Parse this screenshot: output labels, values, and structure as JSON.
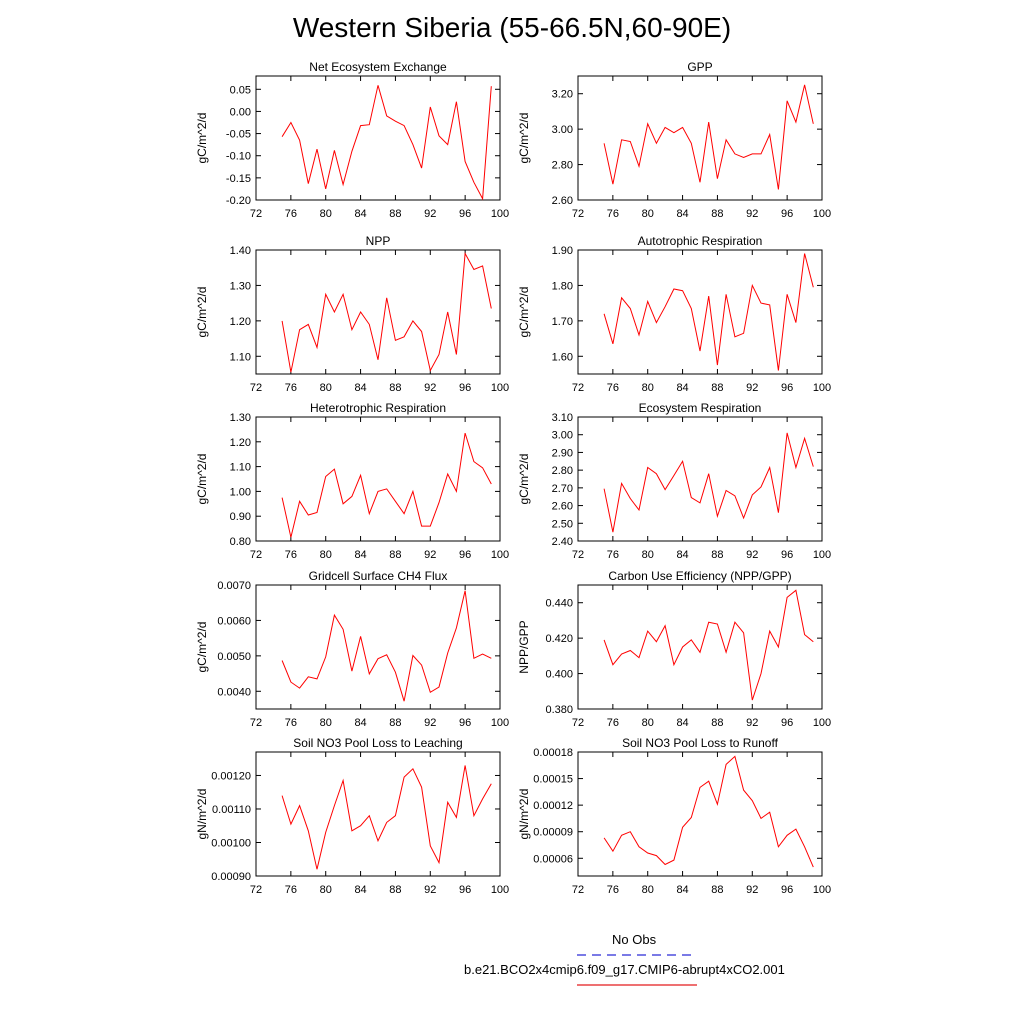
{
  "figure_title": "Western Siberia (55-66.5N,60-90E)",
  "legend": {
    "entries": [
      {
        "label": "No Obs",
        "color": "#2b2bd6",
        "dash": true
      },
      {
        "label": "b.e21.BCO2x4cmip6.f09_g17.CMIP6-abrupt4xCO2.001",
        "color": "#e31a1c",
        "dash": false
      }
    ]
  },
  "series_color": "#ff0000",
  "chart_data": [
    {
      "type": "line",
      "title": "Net Ecosystem Exchange",
      "ylabel": "gC/m^2/d",
      "xlim": [
        72,
        100
      ],
      "ylim": [
        -0.2,
        0.08
      ],
      "xticks": [
        72,
        76,
        80,
        84,
        88,
        92,
        96,
        100
      ],
      "yticks": [
        -0.2,
        -0.15,
        -0.1,
        -0.05,
        0.0,
        0.05
      ],
      "ytick_labels": [
        "-0.20",
        "-0.15",
        "-0.10",
        "-0.05",
        "0.00",
        "0.05"
      ],
      "x": [
        75,
        76,
        77,
        78,
        79,
        80,
        81,
        82,
        83,
        84,
        85,
        86,
        87,
        88,
        89,
        90,
        91,
        92,
        93,
        94,
        95,
        96,
        97,
        98,
        99
      ],
      "y": [
        -0.057,
        -0.025,
        -0.065,
        -0.163,
        -0.085,
        -0.175,
        -0.088,
        -0.165,
        -0.09,
        -0.032,
        -0.03,
        0.059,
        -0.01,
        -0.022,
        -0.032,
        -0.075,
        -0.128,
        0.01,
        -0.055,
        -0.075,
        0.022,
        -0.113,
        -0.16,
        -0.197,
        0.057
      ]
    },
    {
      "type": "line",
      "title": "GPP",
      "ylabel": "gC/m^2/d",
      "xlim": [
        72,
        100
      ],
      "ylim": [
        2.6,
        3.3
      ],
      "xticks": [
        72,
        76,
        80,
        84,
        88,
        92,
        96,
        100
      ],
      "yticks": [
        2.6,
        2.8,
        3.0,
        3.2
      ],
      "ytick_labels": [
        "2.60",
        "2.80",
        "3.00",
        "3.20"
      ],
      "x": [
        75,
        76,
        77,
        78,
        79,
        80,
        81,
        82,
        83,
        84,
        85,
        86,
        87,
        88,
        89,
        90,
        91,
        92,
        93,
        94,
        95,
        96,
        97,
        98,
        99
      ],
      "y": [
        2.92,
        2.69,
        2.94,
        2.93,
        2.79,
        3.03,
        2.92,
        3.01,
        2.98,
        3.01,
        2.92,
        2.7,
        3.04,
        2.72,
        2.94,
        2.86,
        2.84,
        2.86,
        2.86,
        2.97,
        2.66,
        3.16,
        3.04,
        3.25,
        3.03
      ]
    },
    {
      "type": "line",
      "title": "NPP",
      "ylabel": "gC/m^2/d",
      "xlim": [
        72,
        100
      ],
      "ylim": [
        1.05,
        1.4
      ],
      "xticks": [
        72,
        76,
        80,
        84,
        88,
        92,
        96,
        100
      ],
      "yticks": [
        1.1,
        1.2,
        1.3,
        1.4
      ],
      "ytick_labels": [
        "1.10",
        "1.20",
        "1.30",
        "1.40"
      ],
      "x": [
        75,
        76,
        77,
        78,
        79,
        80,
        81,
        82,
        83,
        84,
        85,
        86,
        87,
        88,
        89,
        90,
        91,
        92,
        93,
        94,
        95,
        96,
        97,
        98,
        99
      ],
      "y": [
        1.2,
        1.055,
        1.175,
        1.19,
        1.125,
        1.275,
        1.225,
        1.275,
        1.175,
        1.225,
        1.19,
        1.09,
        1.265,
        1.145,
        1.155,
        1.2,
        1.17,
        1.06,
        1.105,
        1.225,
        1.105,
        1.39,
        1.345,
        1.355,
        1.235
      ]
    },
    {
      "type": "line",
      "title": "Autotrophic Respiration",
      "ylabel": "gC/m^2/d",
      "xlim": [
        72,
        100
      ],
      "ylim": [
        1.55,
        1.9
      ],
      "xticks": [
        72,
        76,
        80,
        84,
        88,
        92,
        96,
        100
      ],
      "yticks": [
        1.6,
        1.7,
        1.8,
        1.9
      ],
      "ytick_labels": [
        "1.60",
        "1.70",
        "1.80",
        "1.90"
      ],
      "x": [
        75,
        76,
        77,
        78,
        79,
        80,
        81,
        82,
        83,
        84,
        85,
        86,
        87,
        88,
        89,
        90,
        91,
        92,
        93,
        94,
        95,
        96,
        97,
        98,
        99
      ],
      "y": [
        1.72,
        1.635,
        1.765,
        1.735,
        1.66,
        1.755,
        1.695,
        1.74,
        1.79,
        1.785,
        1.735,
        1.615,
        1.77,
        1.575,
        1.775,
        1.655,
        1.665,
        1.8,
        1.75,
        1.745,
        1.56,
        1.775,
        1.695,
        1.89,
        1.795
      ]
    },
    {
      "type": "line",
      "title": "Heterotrophic Respiration",
      "ylabel": "gC/m^2/d",
      "xlim": [
        72,
        100
      ],
      "ylim": [
        0.8,
        1.3
      ],
      "xticks": [
        72,
        76,
        80,
        84,
        88,
        92,
        96,
        100
      ],
      "yticks": [
        0.8,
        0.9,
        1.0,
        1.1,
        1.2,
        1.3
      ],
      "ytick_labels": [
        "0.80",
        "0.90",
        "1.00",
        "1.10",
        "1.20",
        "1.30"
      ],
      "x": [
        75,
        76,
        77,
        78,
        79,
        80,
        81,
        82,
        83,
        84,
        85,
        86,
        87,
        88,
        89,
        90,
        91,
        92,
        93,
        94,
        95,
        96,
        97,
        98,
        99
      ],
      "y": [
        0.975,
        0.815,
        0.96,
        0.905,
        0.915,
        1.06,
        1.09,
        0.95,
        0.98,
        1.065,
        0.91,
        1.0,
        1.01,
        0.96,
        0.91,
        1.0,
        0.86,
        0.86,
        0.955,
        1.07,
        1.0,
        1.235,
        1.12,
        1.095,
        1.03
      ]
    },
    {
      "type": "line",
      "title": "Ecosystem Respiration",
      "ylabel": "gC/m^2/d",
      "xlim": [
        72,
        100
      ],
      "ylim": [
        2.4,
        3.1
      ],
      "xticks": [
        72,
        76,
        80,
        84,
        88,
        92,
        96,
        100
      ],
      "yticks": [
        2.4,
        2.5,
        2.6,
        2.7,
        2.8,
        2.9,
        3.0,
        3.1
      ],
      "ytick_labels": [
        "2.40",
        "2.50",
        "2.60",
        "2.70",
        "2.80",
        "2.90",
        "3.00",
        "3.10"
      ],
      "x": [
        75,
        76,
        77,
        78,
        79,
        80,
        81,
        82,
        83,
        84,
        85,
        86,
        87,
        88,
        89,
        90,
        91,
        92,
        93,
        94,
        95,
        96,
        97,
        98,
        99
      ],
      "y": [
        2.695,
        2.45,
        2.725,
        2.64,
        2.575,
        2.815,
        2.78,
        2.69,
        2.77,
        2.85,
        2.645,
        2.615,
        2.78,
        2.54,
        2.685,
        2.655,
        2.53,
        2.66,
        2.705,
        2.815,
        2.56,
        3.01,
        2.815,
        2.98,
        2.82
      ]
    },
    {
      "type": "line",
      "title": "Gridcell Surface CH4 Flux",
      "ylabel": "gC/m^2/d",
      "xlim": [
        72,
        100
      ],
      "ylim": [
        0.0035,
        0.007
      ],
      "xticks": [
        72,
        76,
        80,
        84,
        88,
        92,
        96,
        100
      ],
      "yticks": [
        0.004,
        0.005,
        0.006,
        0.007
      ],
      "ytick_labels": [
        "0.0040",
        "0.0050",
        "0.0060",
        "0.0070"
      ],
      "x": [
        75,
        76,
        77,
        78,
        79,
        80,
        81,
        82,
        83,
        84,
        85,
        86,
        87,
        88,
        89,
        90,
        91,
        92,
        93,
        94,
        95,
        96,
        97,
        98,
        99
      ],
      "y": [
        0.00487,
        0.00426,
        0.00409,
        0.00441,
        0.00435,
        0.00497,
        0.00615,
        0.00575,
        0.00457,
        0.00555,
        0.00449,
        0.00492,
        0.00503,
        0.00454,
        0.00372,
        0.00501,
        0.00474,
        0.00397,
        0.00412,
        0.00508,
        0.00579,
        0.00684,
        0.00493,
        0.00505,
        0.00493
      ]
    },
    {
      "type": "line",
      "title": "Carbon Use Efficiency (NPP/GPP)",
      "ylabel": "NPP/GPP",
      "xlim": [
        72,
        100
      ],
      "ylim": [
        0.38,
        0.45
      ],
      "xticks": [
        72,
        76,
        80,
        84,
        88,
        92,
        96,
        100
      ],
      "yticks": [
        0.38,
        0.4,
        0.42,
        0.44
      ],
      "ytick_labels": [
        "0.380",
        "0.400",
        "0.420",
        "0.440"
      ],
      "x": [
        75,
        76,
        77,
        78,
        79,
        80,
        81,
        82,
        83,
        84,
        85,
        86,
        87,
        88,
        89,
        90,
        91,
        92,
        93,
        94,
        95,
        96,
        97,
        98,
        99
      ],
      "y": [
        0.419,
        0.405,
        0.411,
        0.413,
        0.409,
        0.424,
        0.418,
        0.427,
        0.405,
        0.415,
        0.419,
        0.412,
        0.429,
        0.428,
        0.412,
        0.429,
        0.423,
        0.385,
        0.4,
        0.424,
        0.415,
        0.443,
        0.447,
        0.422,
        0.418
      ]
    },
    {
      "type": "line",
      "title": "Soil NO3 Pool Loss to Leaching",
      "ylabel": "gN/m^2/d",
      "xlim": [
        72,
        100
      ],
      "ylim": [
        0.0009,
        0.00127
      ],
      "xticks": [
        72,
        76,
        80,
        84,
        88,
        92,
        96,
        100
      ],
      "yticks": [
        0.0009,
        0.001,
        0.0011,
        0.0012
      ],
      "ytick_labels": [
        "0.00090",
        "0.00100",
        "0.00110",
        "0.00120"
      ],
      "x": [
        75,
        76,
        77,
        78,
        79,
        80,
        81,
        82,
        83,
        84,
        85,
        86,
        87,
        88,
        89,
        90,
        91,
        92,
        93,
        94,
        95,
        96,
        97,
        98,
        99
      ],
      "y": [
        0.00114,
        0.001055,
        0.00111,
        0.001035,
        0.00092,
        0.00103,
        0.00111,
        0.001185,
        0.001035,
        0.00105,
        0.00108,
        0.001005,
        0.00106,
        0.00108,
        0.001195,
        0.00122,
        0.001165,
        0.00099,
        0.00094,
        0.00112,
        0.001075,
        0.00123,
        0.00108,
        0.00113,
        0.001175
      ]
    },
    {
      "type": "line",
      "title": "Soil NO3 Pool Loss to Runoff",
      "ylabel": "gN/m^2/d",
      "xlim": [
        72,
        100
      ],
      "ylim": [
        4e-05,
        0.00018
      ],
      "xticks": [
        72,
        76,
        80,
        84,
        88,
        92,
        96,
        100
      ],
      "yticks": [
        6e-05,
        9e-05,
        0.00012,
        0.00015,
        0.00018
      ],
      "ytick_labels": [
        "0.00006",
        "0.00009",
        "0.00012",
        "0.00015",
        "0.00018"
      ],
      "x": [
        75,
        76,
        77,
        78,
        79,
        80,
        81,
        82,
        83,
        84,
        85,
        86,
        87,
        88,
        89,
        90,
        91,
        92,
        93,
        94,
        95,
        96,
        97,
        98,
        99
      ],
      "y": [
        8.3e-05,
        6.8e-05,
        8.6e-05,
        9e-05,
        7.3e-05,
        6.6e-05,
        6.3e-05,
        5.3e-05,
        5.8e-05,
        9.5e-05,
        0.000106,
        0.00014,
        0.000147,
        0.000121,
        0.000166,
        0.000175,
        0.000137,
        0.000125,
        0.000105,
        0.000112,
        7.3e-05,
        8.6e-05,
        9.3e-05,
        7.3e-05,
        5e-05
      ]
    }
  ]
}
